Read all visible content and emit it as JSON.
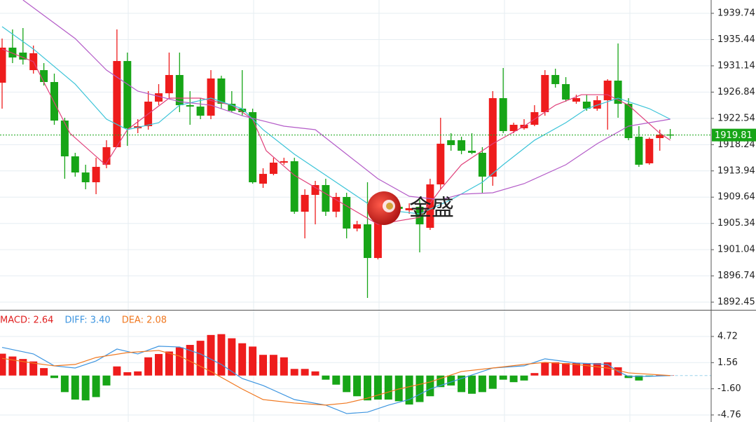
{
  "chart_data": [
    {
      "type": "candlestick",
      "open": [
        1928.38,
        1934.12,
        1933.31,
        1930.44,
        1930.44,
        1928.49,
        1922.18,
        1916.32,
        1913.68,
        1912.08,
        1914.95,
        1917.82,
        1931.93,
        1920.92,
        1921.26,
        1925.28,
        1926.65,
        1929.64,
        1924.7,
        1924.47,
        1922.98,
        1929.07,
        1924.93,
        1924.13,
        1923.56,
        1911.85,
        1913.45,
        1915.29,
        1915.52,
        1907.26,
        1910.01,
        1911.62,
        1907.26,
        1909.67,
        1904.5,
        1905.19,
        1899.68,
        1908.63,
        1908.06,
        1907.49,
        1908.06,
        1904.62,
        1911.73,
        1918.96,
        1918.96,
        1917.24,
        1916.9,
        1913.0,
        1925.85,
        1920.46,
        1920.92,
        1921.49,
        1923.56,
        1929.64,
        1928.15,
        1925.28,
        1925.28,
        1924.13,
        1925.51,
        1928.72,
        1924.93,
        1919.54,
        1915.18,
        1919.31,
        1919.9
      ],
      "high": [
        1935.61,
        1937.1,
        1937.33,
        1934.46,
        1931.59,
        1929.87,
        1922.64,
        1916.9,
        1914.95,
        1916.09,
        1918.96,
        1937.1,
        1933.31,
        1922.41,
        1927.0,
        1928.15,
        1933.31,
        1933.31,
        1927.0,
        1925.85,
        1930.44,
        1929.52,
        1927.0,
        1930.44,
        1924.13,
        1914.37,
        1916.09,
        1916.09,
        1916.09,
        1910.93,
        1912.31,
        1912.65,
        1910.36,
        1910.36,
        1905.76,
        1912.08,
        1909.78,
        1909.21,
        1908.63,
        1908.63,
        1909.21,
        1912.65,
        1922.64,
        1920.11,
        1919.54,
        1920.11,
        1917.82,
        1927.0,
        1930.79,
        1921.83,
        1922.41,
        1924.7,
        1930.44,
        1930.67,
        1929.29,
        1926.42,
        1926.42,
        1926.2,
        1928.95,
        1934.8,
        1925.85,
        1921.26,
        1919.42,
        1920.69,
        1920.8
      ],
      "low": [
        1924.13,
        1931.59,
        1931.36,
        1929.87,
        1927.92,
        1921.49,
        1912.65,
        1913.0,
        1910.93,
        1910.13,
        1914.37,
        1917.82,
        1918.05,
        1920.11,
        1920.69,
        1924.7,
        1925.85,
        1923.56,
        1921.49,
        1922.41,
        1922.41,
        1924.13,
        1923.56,
        1922.98,
        1911.85,
        1911.16,
        1913.22,
        1914.95,
        1906.91,
        1902.89,
        1905.19,
        1906.57,
        1906.34,
        1902.89,
        1904.04,
        1893.14,
        1899.45,
        1906.91,
        1907.49,
        1906.91,
        1900.6,
        1904.27,
        1910.93,
        1917.24,
        1916.67,
        1916.67,
        1910.36,
        1911.5,
        1920.11,
        1920.11,
        1920.69,
        1921.26,
        1922.98,
        1927.57,
        1925.28,
        1924.93,
        1923.79,
        1923.79,
        1920.69,
        1922.64,
        1918.96,
        1914.6,
        1914.95,
        1917.24,
        1919.19
      ],
      "close": [
        1934.12,
        1932.51,
        1932.16,
        1933.2,
        1928.49,
        1922.18,
        1916.32,
        1913.68,
        1912.08,
        1914.6,
        1917.82,
        1931.93,
        1920.92,
        1921.26,
        1925.28,
        1926.65,
        1929.64,
        1924.7,
        1924.47,
        1922.98,
        1929.07,
        1924.93,
        1923.79,
        1923.56,
        1912.08,
        1913.45,
        1915.29,
        1915.52,
        1907.26,
        1910.01,
        1911.62,
        1907.26,
        1909.67,
        1904.5,
        1905.19,
        1899.68,
        1908.63,
        1907.72,
        1907.72,
        1907.83,
        1905.19,
        1911.73,
        1918.39,
        1918.16,
        1917.24,
        1916.9,
        1913.0,
        1925.85,
        1920.46,
        1921.49,
        1921.49,
        1923.56,
        1929.64,
        1928.15,
        1925.62,
        1925.85,
        1924.13,
        1925.51,
        1928.72,
        1924.93,
        1919.31,
        1914.95,
        1919.19,
        1919.88,
        1919.81
      ],
      "up_color": "#ee1c1c",
      "down_color": "#17a517",
      "ma_lines": [
        {
          "color": "#e0407a",
          "x": [
            0,
            3,
            6.5,
            9.9,
            12,
            16,
            19,
            22,
            24,
            25.3,
            28,
            32,
            36,
            40,
            42,
            44,
            47,
            50,
            53,
            55.5,
            58,
            60,
            63,
            64
          ],
          "values": [
            1933.89,
            1931.82,
            1920.11,
            1914.95,
            1920.69,
            1925.85,
            1925.85,
            1924.7,
            1922.41,
            1917.24,
            1913.22,
            1909.21,
            1905.19,
            1906.34,
            1910.93,
            1914.95,
            1918.39,
            1921.26,
            1924.7,
            1926.42,
            1926.42,
            1924.7,
            1920.11,
            1918.96
          ]
        },
        {
          "color": "#3cc4d8",
          "x": [
            0,
            3,
            7,
            10,
            12,
            15,
            17,
            20,
            23,
            25,
            28,
            32,
            35,
            37,
            40,
            43,
            46,
            48,
            51,
            54,
            56,
            59,
            62,
            64
          ],
          "values": [
            1937.56,
            1933.89,
            1928.15,
            1922.41,
            1920.69,
            1921.83,
            1924.7,
            1925.85,
            1924.13,
            1920.69,
            1916.67,
            1912.08,
            1908.63,
            1907.49,
            1906.91,
            1909.21,
            1912.08,
            1914.95,
            1918.96,
            1921.83,
            1924.13,
            1925.85,
            1924.13,
            1922.41
          ]
        },
        {
          "color": "#b45cc8",
          "x": [
            2,
            7,
            10,
            13,
            17,
            20,
            23,
            27,
            30,
            33,
            36,
            39,
            42,
            44,
            47,
            50,
            54,
            57,
            60,
            64
          ],
          "values": [
            1941.92,
            1935.61,
            1930.44,
            1927.0,
            1925.28,
            1924.7,
            1922.98,
            1921.26,
            1920.69,
            1916.67,
            1912.65,
            1909.78,
            1909.21,
            1910.13,
            1910.36,
            1911.85,
            1914.95,
            1918.39,
            1921.26,
            1922.41
          ]
        }
      ],
      "last_price": 1919.81,
      "last_price_color": "#17a517",
      "ylim": [
        1891.19,
        1941.92
      ],
      "yticks": [
        1939.74,
        1935.44,
        1931.14,
        1926.84,
        1922.54,
        1918.24,
        1913.94,
        1909.64,
        1905.34,
        1901.04,
        1896.74,
        1892.45
      ],
      "grid": true,
      "watermark": "金盛"
    },
    {
      "type": "macd",
      "values": [
        2.64,
        2.3,
        2.0,
        1.7,
        0.9,
        -0.3,
        -2.0,
        -2.9,
        -3.0,
        -2.6,
        -1.2,
        1.1,
        0.4,
        0.5,
        2.2,
        2.6,
        2.9,
        3.4,
        3.7,
        4.2,
        4.9,
        5.0,
        4.5,
        3.9,
        3.5,
        2.5,
        2.5,
        2.2,
        0.8,
        0.8,
        0.5,
        -0.5,
        -1.1,
        -2.0,
        -2.5,
        -3.0,
        -2.9,
        -2.9,
        -3.1,
        -3.5,
        -3.2,
        -2.5,
        -1.4,
        -1.2,
        -2.0,
        -2.2,
        -2.0,
        -1.6,
        -0.5,
        -0.8,
        -0.6,
        0.3,
        1.6,
        1.6,
        1.5,
        1.5,
        1.5,
        1.5,
        1.6,
        1.0,
        -0.3,
        -0.6,
        -0.1,
        0.05,
        0.05
      ],
      "up_color": "#ee1c1c",
      "down_color": "#17a517",
      "series": [
        {
          "name": "DIFF",
          "color": "#3d95e0",
          "x": [
            0,
            3,
            5,
            7,
            9,
            11,
            13,
            15,
            17,
            19,
            21,
            23,
            25,
            28,
            31,
            33,
            35,
            37,
            39,
            41,
            44,
            47,
            50,
            52,
            55,
            58,
            59,
            60,
            62,
            64
          ],
          "values": [
            3.4,
            2.61,
            1.17,
            0.91,
            1.76,
            3.2,
            2.61,
            3.54,
            3.45,
            2.61,
            1.34,
            -0.36,
            -1.2,
            -2.9,
            -3.57,
            -4.59,
            -4.42,
            -3.57,
            -2.9,
            -1.63,
            -0.36,
            0.91,
            1.17,
            2.02,
            1.51,
            1.34,
            0.49,
            -0.1,
            -0.1,
            0.0
          ]
        },
        {
          "name": "DEA",
          "color": "#f07820",
          "x": [
            0,
            3,
            5,
            7,
            9,
            12,
            15,
            17,
            20,
            23,
            25,
            28,
            31,
            33,
            35,
            38,
            41,
            44,
            47,
            50,
            52,
            55,
            58,
            60,
            64
          ],
          "values": [
            2.08,
            1.5,
            1.17,
            1.34,
            2.18,
            2.77,
            3.03,
            2.35,
            0.49,
            -1.63,
            -2.9,
            -3.32,
            -3.57,
            -3.32,
            -2.73,
            -1.63,
            -0.78,
            0.49,
            0.91,
            1.34,
            1.59,
            1.34,
            0.91,
            0.32,
            0.0
          ]
        }
      ],
      "legend": [
        {
          "label": "MACD: 2.64",
          "color": "#e02020"
        },
        {
          "label": "DIFF: 3.40",
          "color": "#3d95e0"
        },
        {
          "label": "DEA: 2.08",
          "color": "#f07820"
        }
      ],
      "ylim": [
        -5.61,
        7.85
      ],
      "yticks": [
        4.72,
        1.56,
        {
          "value": -1.6,
          "label": "-1.60"
        },
        -4.76
      ],
      "grid": true
    }
  ]
}
